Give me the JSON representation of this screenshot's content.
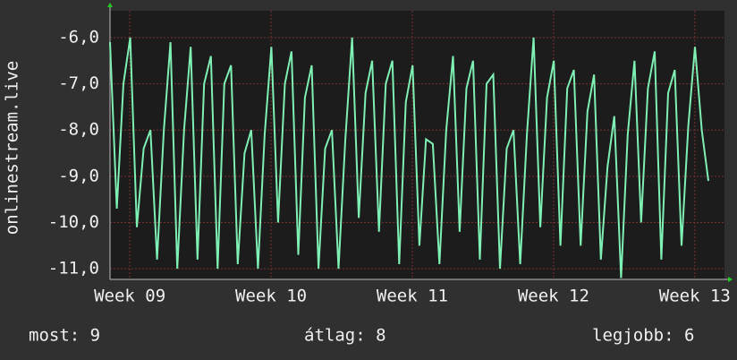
{
  "chart_data": {
    "type": "line",
    "y_label": "onlinestream.live",
    "x": [
      8.86,
      8.908,
      8.955,
      9.003,
      9.05,
      9.098,
      9.146,
      9.193,
      9.241,
      9.288,
      9.336,
      9.384,
      9.431,
      9.479,
      9.526,
      9.574,
      9.622,
      9.669,
      9.717,
      9.764,
      9.812,
      9.86,
      9.907,
      9.955,
      10.002,
      10.05,
      10.098,
      10.145,
      10.193,
      10.24,
      10.288,
      10.336,
      10.383,
      10.431,
      10.478,
      10.526,
      10.574,
      10.621,
      10.669,
      10.716,
      10.764,
      10.812,
      10.859,
      10.907,
      10.954,
      11.002,
      11.05,
      11.097,
      11.145,
      11.192,
      11.24,
      11.288,
      11.335,
      11.383,
      11.43,
      11.478,
      11.526,
      11.573,
      11.621,
      11.668,
      11.716,
      11.764,
      11.811,
      11.859,
      11.906,
      11.954,
      12.002,
      12.049,
      12.097,
      12.144,
      12.192,
      12.24,
      12.287,
      12.335,
      12.382,
      12.43,
      12.478,
      12.525,
      12.573,
      12.62,
      12.668,
      12.716,
      12.763,
      12.811,
      12.858,
      12.906,
      12.954,
      13.001,
      13.049,
      13.096
    ],
    "series": [
      {
        "name": "onlinestream.live",
        "color": "#7ff0b4",
        "values": [
          -6.1,
          -9.7,
          -7.0,
          -6.0,
          -10.1,
          -8.4,
          -8.0,
          -10.8,
          -8.0,
          -6.1,
          -11.0,
          -8.0,
          -6.2,
          -10.8,
          -7.0,
          -6.4,
          -11.0,
          -7.0,
          -6.6,
          -10.9,
          -8.5,
          -8.0,
          -11.0,
          -8.1,
          -6.2,
          -10.0,
          -7.0,
          -6.3,
          -10.7,
          -7.3,
          -6.6,
          -11.0,
          -8.4,
          -8.0,
          -11.0,
          -8.2,
          -6.0,
          -9.9,
          -7.2,
          -6.5,
          -10.2,
          -7.0,
          -6.5,
          -10.9,
          -7.4,
          -6.6,
          -10.5,
          -8.2,
          -8.3,
          -10.9,
          -8.0,
          -6.4,
          -10.2,
          -7.1,
          -6.5,
          -10.8,
          -7.0,
          -6.8,
          -11.0,
          -8.4,
          -8.0,
          -10.9,
          -8.1,
          -6.0,
          -10.1,
          -7.3,
          -6.5,
          -10.5,
          -7.1,
          -6.7,
          -10.5,
          -7.6,
          -6.8,
          -10.8,
          -8.8,
          -7.7,
          -11.2,
          -8.1,
          -6.5,
          -10.0,
          -7.1,
          -6.3,
          -10.8,
          -7.2,
          -6.7,
          -10.5,
          -7.9,
          -6.2,
          -8.0,
          -9.1
        ]
      }
    ],
    "xlim": [
      8.86,
      13.21
    ],
    "xticks": [
      {
        "value": 9,
        "label": "Week 09"
      },
      {
        "value": 10,
        "label": "Week 10"
      },
      {
        "value": 11,
        "label": "Week 11"
      },
      {
        "value": 12,
        "label": "Week 12"
      },
      {
        "value": 13,
        "label": "Week 13"
      }
    ],
    "ylim": [
      -11.23,
      -5.42
    ],
    "yticks": [
      {
        "value": -11,
        "label": "-11,0"
      },
      {
        "value": -10,
        "label": "-10,0"
      },
      {
        "value": -9,
        "label": "-9,0"
      },
      {
        "value": -8,
        "label": "-8,0"
      },
      {
        "value": -7,
        "label": "-7,0"
      },
      {
        "value": -6,
        "label": "-6,0"
      }
    ],
    "grid": true
  },
  "footer": {
    "current": "most: 9",
    "average": "átlag: 8",
    "best": "legjobb: 6"
  }
}
